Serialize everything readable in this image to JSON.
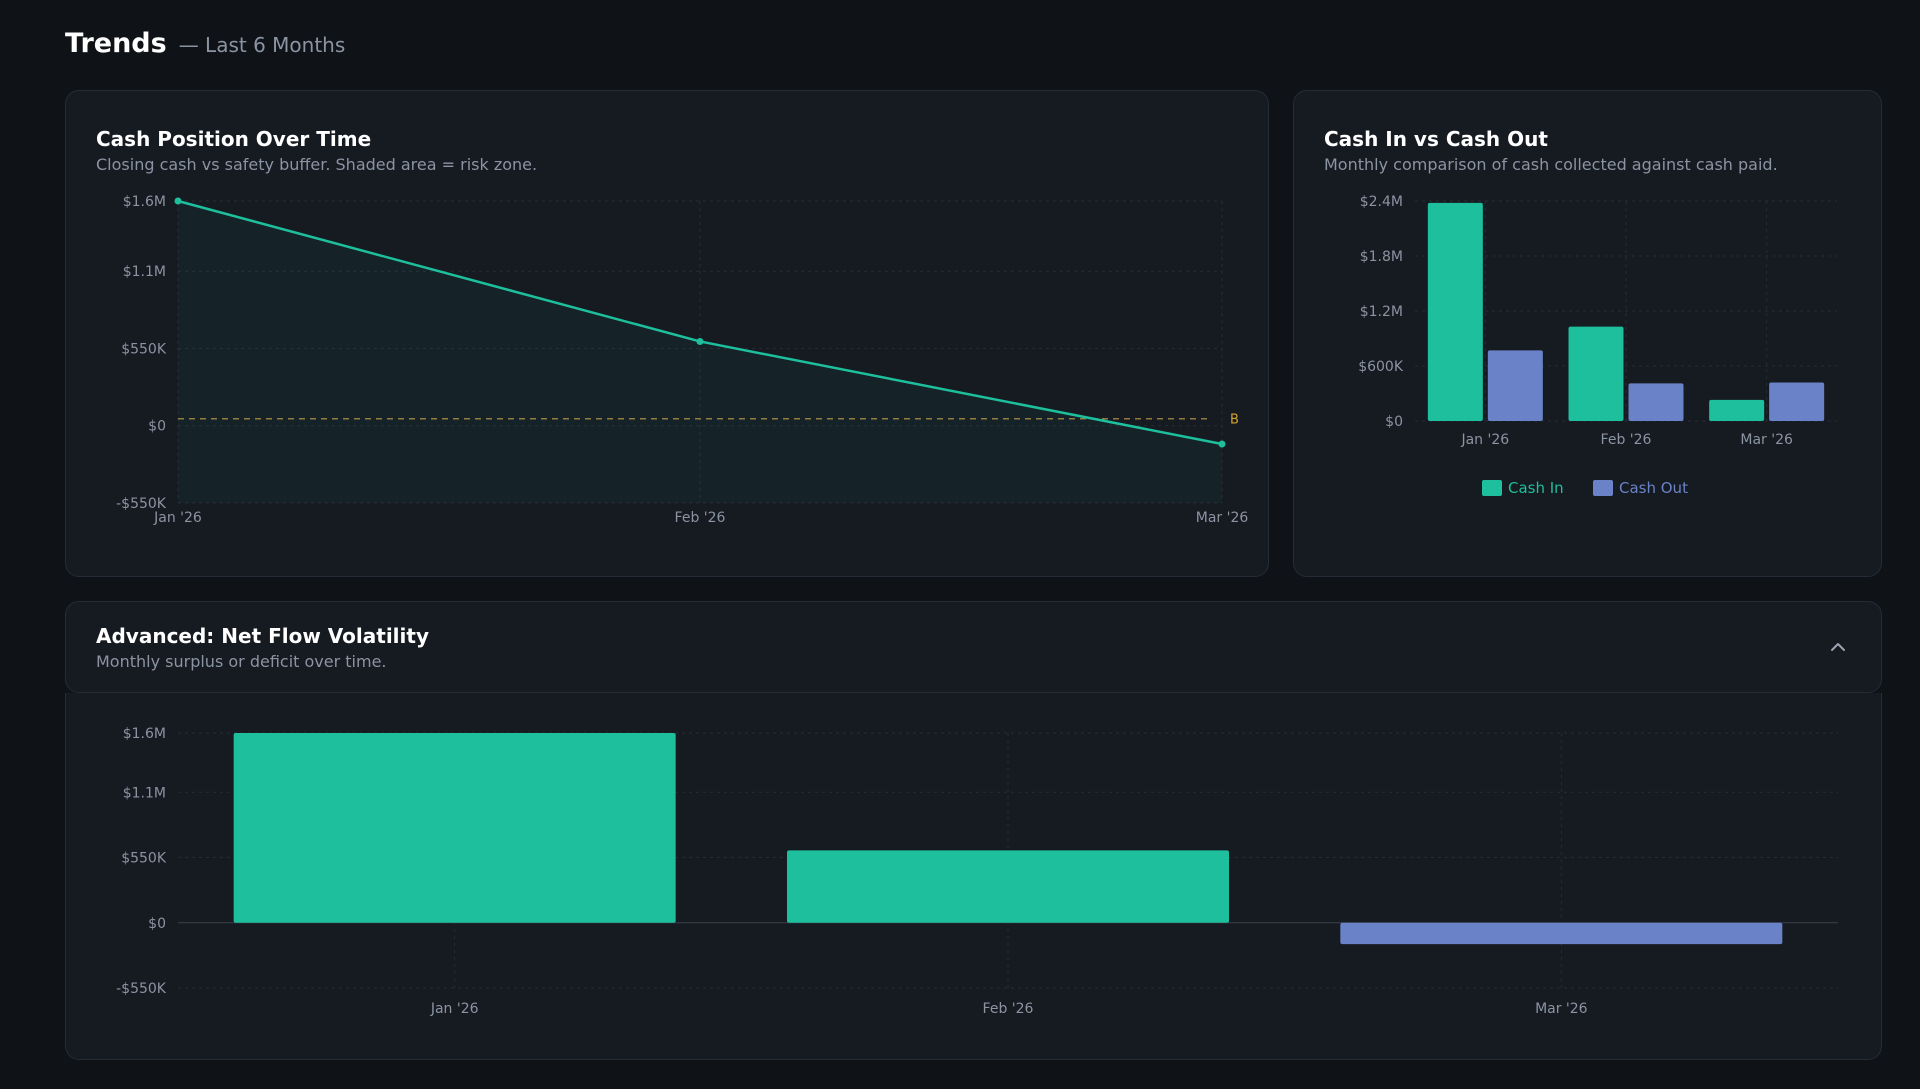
{
  "header": {
    "title": "Trends",
    "subtitle": "— Last 6 Months"
  },
  "colors": {
    "cash_in": "#1dbf9c",
    "cash_out": "#6a82c8",
    "buffer": "#c8a24a",
    "line": "#1dbf9c"
  },
  "cash_position": {
    "title": "Cash Position Over Time",
    "description": "Closing cash vs safety buffer. Shaded area = risk zone.",
    "chart_data": {
      "type": "line",
      "categories": [
        "Jan '26",
        "Feb '26",
        "Mar '26"
      ],
      "series": [
        {
          "values": [
            1600000,
            600000,
            -130000
          ]
        }
      ],
      "reference_line": {
        "value": 50000,
        "label": "B"
      },
      "yticks": [
        1600000,
        1100000,
        550000,
        0,
        -550000
      ],
      "ytick_labels": [
        "$1.6M",
        "$1.1M",
        "$550K",
        "$0",
        "-$550K"
      ],
      "ylim": [
        -550000,
        1600000
      ],
      "grid": true
    }
  },
  "cash_in_out": {
    "title": "Cash In vs Cash Out",
    "description": "Monthly comparison of cash collected against cash paid.",
    "chart_data": {
      "type": "bar",
      "categories": [
        "Jan '26",
        "Feb '26",
        "Mar '26"
      ],
      "series": [
        {
          "name": "Cash In",
          "values": [
            2380000,
            1030000,
            230000
          ]
        },
        {
          "name": "Cash Out",
          "values": [
            770000,
            410000,
            420000
          ]
        }
      ],
      "yticks": [
        2400000,
        1800000,
        1200000,
        600000,
        0
      ],
      "ytick_labels": [
        "$2.4M",
        "$1.8M",
        "$1.2M",
        "$600K",
        "$0"
      ],
      "ylim": [
        0,
        2400000
      ],
      "legend": "bottom",
      "grid": true
    }
  },
  "net_flow": {
    "title": "Advanced: Net Flow Volatility",
    "description": "Monthly surplus or deficit over time.",
    "expanded": true,
    "chart_data": {
      "type": "bar",
      "categories": [
        "Jan '26",
        "Feb '26",
        "Mar '26"
      ],
      "values": [
        1600000,
        610000,
        -180000
      ],
      "yticks": [
        1600000,
        1100000,
        550000,
        0,
        -550000
      ],
      "ytick_labels": [
        "$1.6M",
        "$1.1M",
        "$550K",
        "$0",
        "-$550K"
      ],
      "ylim": [
        -550000,
        1600000
      ],
      "grid": true
    }
  }
}
